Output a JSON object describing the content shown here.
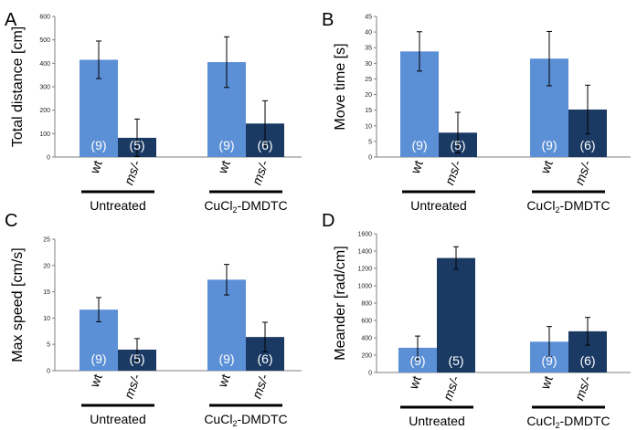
{
  "colors": {
    "wt": "#5b8fd6",
    "ms": "#1b3a63",
    "axis": "#7f7f7f",
    "errorbar": "#000000"
  },
  "chart_data": [
    {
      "type": "bar",
      "panel": "A",
      "ylabel": "Total distance [cm]",
      "ylim": [
        0,
        600
      ],
      "yticks": [
        0,
        100,
        200,
        300,
        400,
        500,
        600
      ],
      "groups": [
        {
          "name": "Untreated",
          "name_main": "Untreated",
          "name_sub": "",
          "name_tail": "",
          "bars": [
            {
              "genotype": "wt",
              "value": 415,
              "error": 80,
              "n": "(9)"
            },
            {
              "genotype": "ms/-",
              "value": 82,
              "error": 80,
              "n": "(5)"
            }
          ]
        },
        {
          "name": "CuCl2-DMDTC",
          "name_main": "CuCl",
          "name_sub": "2",
          "name_tail": "-DMDTC",
          "bars": [
            {
              "genotype": "wt",
              "value": 405,
              "error": 108,
              "n": "(9)"
            },
            {
              "genotype": "ms/-",
              "value": 143,
              "error": 97,
              "n": "(6)"
            }
          ]
        }
      ]
    },
    {
      "type": "bar",
      "panel": "B",
      "ylabel": "Move time [s]",
      "ylim": [
        0,
        45
      ],
      "yticks": [
        0,
        5,
        10,
        15,
        20,
        25,
        30,
        35,
        40,
        45
      ],
      "groups": [
        {
          "name": "Untreated",
          "name_main": "Untreated",
          "name_sub": "",
          "name_tail": "",
          "bars": [
            {
              "genotype": "wt",
              "value": 33.8,
              "error": 6.3,
              "n": "(9)"
            },
            {
              "genotype": "ms/-",
              "value": 7.8,
              "error": 6.5,
              "n": "(5)"
            }
          ]
        },
        {
          "name": "CuCl2-DMDTC",
          "name_main": "CuCl",
          "name_sub": "2",
          "name_tail": "-DMDTC",
          "bars": [
            {
              "genotype": "wt",
              "value": 31.5,
              "error": 8.7,
              "n": "(9)"
            },
            {
              "genotype": "ms/-",
              "value": 15.2,
              "error": 7.8,
              "n": "(6)"
            }
          ]
        }
      ]
    },
    {
      "type": "bar",
      "panel": "C",
      "ylabel": "Max speed [cm/s]",
      "ylim": [
        0,
        25
      ],
      "yticks": [
        0,
        5,
        10,
        15,
        20,
        25
      ],
      "groups": [
        {
          "name": "Untreated",
          "name_main": "Untreated",
          "name_sub": "",
          "name_tail": "",
          "bars": [
            {
              "genotype": "wt",
              "value": 11.6,
              "error": 2.3,
              "n": "(9)"
            },
            {
              "genotype": "ms/-",
              "value": 4.0,
              "error": 2.1,
              "n": "(5)"
            }
          ]
        },
        {
          "name": "CuCl2-DMDTC",
          "name_main": "CuCl",
          "name_sub": "2",
          "name_tail": "-DMDTC",
          "bars": [
            {
              "genotype": "wt",
              "value": 17.3,
              "error": 2.9,
              "n": "(9)"
            },
            {
              "genotype": "ms/-",
              "value": 6.4,
              "error": 2.8,
              "n": "(6)"
            }
          ]
        }
      ]
    },
    {
      "type": "bar",
      "panel": "D",
      "ylabel": "Meander [rad/cm]",
      "ylim": [
        0,
        1600
      ],
      "yticks": [
        0,
        200,
        400,
        600,
        800,
        1000,
        1200,
        1400,
        1600
      ],
      "groups": [
        {
          "name": "Untreated",
          "name_main": "Untreated",
          "name_sub": "",
          "name_tail": "",
          "bars": [
            {
              "genotype": "wt",
              "value": 285,
              "error": 135,
              "n": "(9)"
            },
            {
              "genotype": "ms/-",
              "value": 1320,
              "error": 130,
              "n": "(5)"
            }
          ]
        },
        {
          "name": "CuCl2-DMDTC",
          "name_main": "CuCl",
          "name_sub": "2",
          "name_tail": "-DMDTC",
          "bars": [
            {
              "genotype": "wt",
              "value": 355,
              "error": 175,
              "n": "(9)"
            },
            {
              "genotype": "ms/-",
              "value": 475,
              "error": 160,
              "n": "(6)"
            }
          ]
        }
      ]
    }
  ]
}
